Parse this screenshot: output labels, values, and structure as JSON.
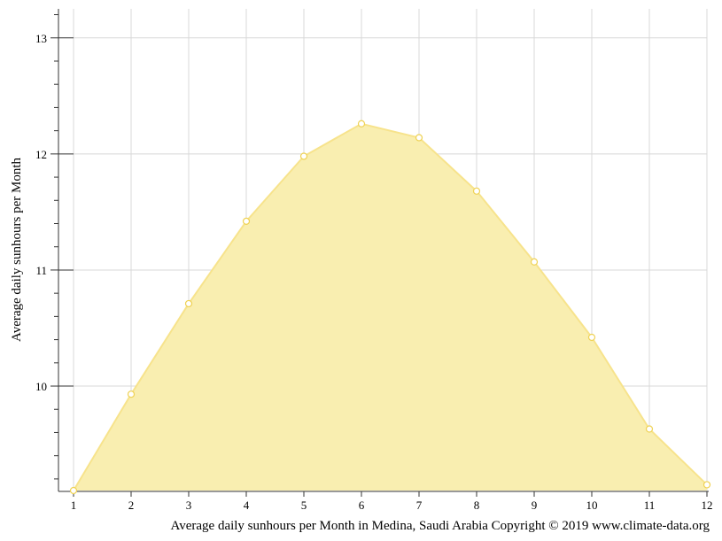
{
  "chart_data": {
    "type": "area",
    "title": "",
    "xlabel": "Average daily sunhours per Month in Medina, Saudi Arabia Copyright © 2019 www.climate-data.org",
    "ylabel": "Average daily sunhours per Month",
    "x": [
      1,
      2,
      3,
      4,
      5,
      6,
      7,
      8,
      9,
      10,
      11,
      12
    ],
    "x_tick_labels": [
      "1",
      "2",
      "3",
      "4",
      "5",
      "6",
      "7",
      "8",
      "9",
      "10",
      "11",
      "12"
    ],
    "y_tick_labels": [
      "10",
      "11",
      "12",
      "13"
    ],
    "y_ticks": [
      10,
      11,
      12,
      13
    ],
    "xlim": [
      1,
      12
    ],
    "ylim": [
      9.1,
      13.25
    ],
    "grid": true,
    "legend": "none",
    "series": [
      {
        "values": [
          9.1,
          9.93,
          10.71,
          11.42,
          11.98,
          12.26,
          12.14,
          11.68,
          11.07,
          10.42,
          9.63,
          9.15
        ],
        "fill_color": "#f9eeb0",
        "line_color": "#f7e38c",
        "marker_stroke": "#efd254",
        "marker_fill": "#ffffff"
      }
    ]
  }
}
